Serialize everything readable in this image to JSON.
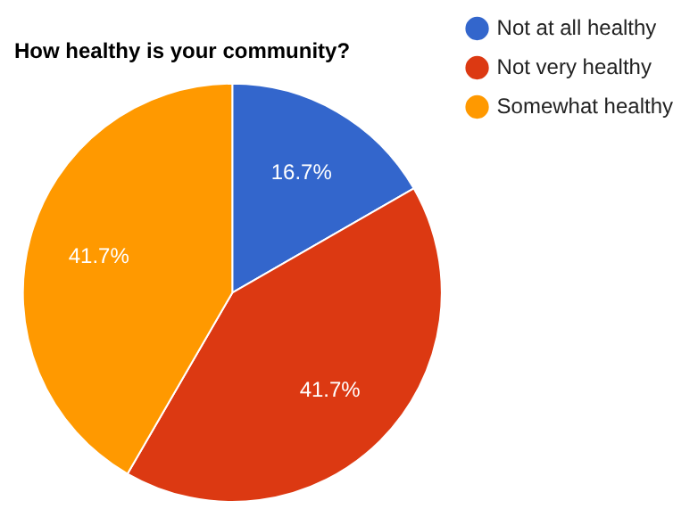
{
  "chart_data": {
    "type": "pie",
    "title": "How healthy is your community?",
    "categories": [
      "Not at all healthy",
      "Not very healthy",
      "Somewhat healthy"
    ],
    "values": [
      16.7,
      41.7,
      41.7
    ],
    "colors": [
      "#3366cc",
      "#dc3912",
      "#ff9900"
    ],
    "value_labels": [
      "16.7%",
      "41.7%",
      "41.7%"
    ],
    "legend": "right"
  }
}
